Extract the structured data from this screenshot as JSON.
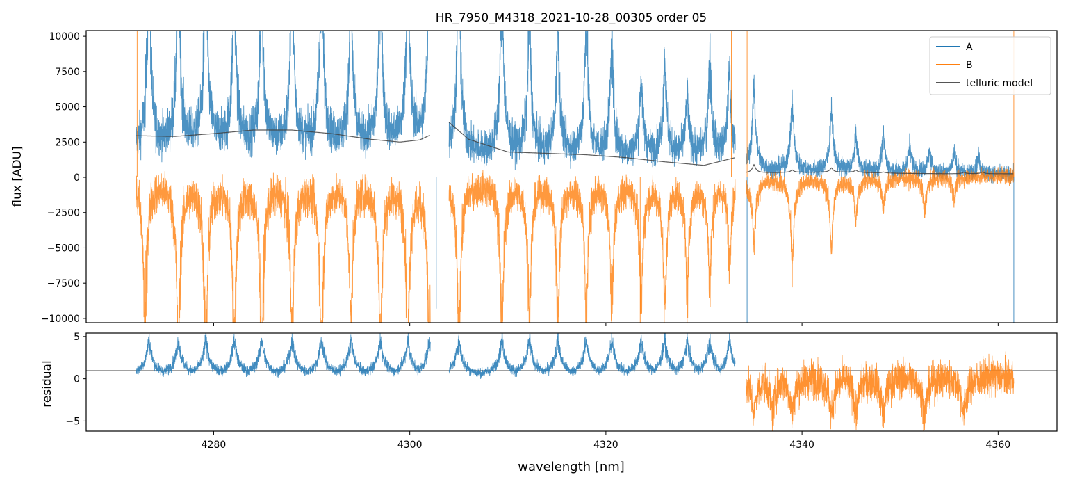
{
  "chart_data": [
    {
      "panel": "top",
      "type": "line",
      "title": "HR_7950_M4318_2021-10-28_00305  order 05",
      "xlabel": "",
      "ylabel": "flux [ADU]",
      "xlim": [
        4267,
        4366
      ],
      "ylim": [
        -10300,
        10400
      ],
      "x_ticks": [
        4280,
        4300,
        4320,
        4340,
        4360
      ],
      "y_ticks": [
        -10000,
        -7500,
        -5000,
        -2500,
        0,
        2500,
        5000,
        7500,
        10000
      ],
      "y_tick_labels": [
        "−10000",
        "−7500",
        "−5000",
        "−2500",
        "0",
        "2500",
        "5000",
        "7500",
        "10000"
      ],
      "legend_position": "top-right",
      "series": [
        {
          "name": "A",
          "color": "#1f77b4",
          "segments": [
            [
              4272.1,
              4302.1
            ],
            [
              4304.0,
              4333.2
            ],
            [
              4334.3,
              4361.6
            ]
          ],
          "baseline": [
            [
              4272.1,
              1700
            ],
            [
              4302.1,
              1800
            ],
            [
              4304.0,
              1200
            ],
            [
              4333.2,
              1100
            ],
            [
              4334.3,
              200
            ],
            [
              4361.6,
              150
            ]
          ],
          "noise": [
            [
              4272.1,
              900
            ],
            [
              4333.2,
              700
            ],
            [
              4334.3,
              450
            ],
            [
              4361.6,
              400
            ]
          ],
          "peaks": [
            {
              "x": 4273.4,
              "h": 14000
            },
            {
              "x": 4276.4,
              "h": 14000
            },
            {
              "x": 4279.2,
              "h": 14000
            },
            {
              "x": 4282.1,
              "h": 12500
            },
            {
              "x": 4284.9,
              "h": 12000
            },
            {
              "x": 4288.0,
              "h": 12500
            },
            {
              "x": 4291.0,
              "h": 13500
            },
            {
              "x": 4294.0,
              "h": 11000
            },
            {
              "x": 4297.0,
              "h": 12500
            },
            {
              "x": 4299.8,
              "h": 13000
            },
            {
              "x": 4302.0,
              "h": 14000
            },
            {
              "x": 4305.0,
              "h": 13500
            },
            {
              "x": 4309.4,
              "h": 12500
            },
            {
              "x": 4312.2,
              "h": 10000
            },
            {
              "x": 4315.1,
              "h": 9000
            },
            {
              "x": 4318.0,
              "h": 10000
            },
            {
              "x": 4320.6,
              "h": 8000
            },
            {
              "x": 4323.6,
              "h": 5500
            },
            {
              "x": 4326.0,
              "h": 7000
            },
            {
              "x": 4328.3,
              "h": 4000
            },
            {
              "x": 4330.6,
              "h": 7000
            },
            {
              "x": 4332.6,
              "h": 6000
            },
            {
              "x": 4335.1,
              "h": 6000
            },
            {
              "x": 4339.0,
              "h": 5000
            },
            {
              "x": 4343.0,
              "h": 4500
            },
            {
              "x": 4345.5,
              "h": 2500
            },
            {
              "x": 4348.3,
              "h": 2500
            },
            {
              "x": 4351.0,
              "h": 2000
            },
            {
              "x": 4353.0,
              "h": 1500
            },
            {
              "x": 4355.5,
              "h": 1500
            },
            {
              "x": 4358.0,
              "h": 1200
            }
          ],
          "spikes": [
            {
              "x": 4302.7,
              "y": -9300
            },
            {
              "x": 4334.4,
              "y": -10300
            },
            {
              "x": 4361.6,
              "y": -10300
            }
          ]
        },
        {
          "name": "B",
          "color": "#ff7f0e",
          "segments": [
            [
              4272.1,
              4302.1
            ],
            [
              4304.0,
              4333.2
            ],
            [
              4334.3,
              4361.6
            ]
          ],
          "baseline": [
            [
              4272.1,
              0
            ],
            [
              4302.1,
              0
            ],
            [
              4304.0,
              0
            ],
            [
              4333.2,
              0
            ],
            [
              4334.3,
              100
            ],
            [
              4361.6,
              150
            ]
          ],
          "noise": [
            [
              4272.1,
              850
            ],
            [
              4333.2,
              650
            ],
            [
              4334.3,
              450
            ],
            [
              4361.6,
              400
            ]
          ],
          "peaks": [
            {
              "x": 4273.0,
              "h": -11000
            },
            {
              "x": 4276.4,
              "h": -13000
            },
            {
              "x": 4279.2,
              "h": -13000
            },
            {
              "x": 4282.1,
              "h": -12000
            },
            {
              "x": 4284.9,
              "h": -13000
            },
            {
              "x": 4288.0,
              "h": -12000
            },
            {
              "x": 4291.0,
              "h": -12500
            },
            {
              "x": 4294.0,
              "h": -10000
            },
            {
              "x": 4297.0,
              "h": -12000
            },
            {
              "x": 4299.8,
              "h": -12000
            },
            {
              "x": 4302.0,
              "h": -13000
            },
            {
              "x": 4305.0,
              "h": -12000
            },
            {
              "x": 4309.4,
              "h": -11000
            },
            {
              "x": 4312.2,
              "h": -10000
            },
            {
              "x": 4315.1,
              "h": -10000
            },
            {
              "x": 4318.0,
              "h": -9500
            },
            {
              "x": 4320.6,
              "h": -9000
            },
            {
              "x": 4323.6,
              "h": -9000
            },
            {
              "x": 4326.0,
              "h": -9000
            },
            {
              "x": 4328.3,
              "h": -8000
            },
            {
              "x": 4330.6,
              "h": -7500
            },
            {
              "x": 4332.6,
              "h": -5500
            },
            {
              "x": 4335.1,
              "h": -4500
            },
            {
              "x": 4339.0,
              "h": -6000
            },
            {
              "x": 4343.0,
              "h": -5000
            },
            {
              "x": 4345.5,
              "h": -3000
            },
            {
              "x": 4348.3,
              "h": -2000
            },
            {
              "x": 4352.5,
              "h": -2500
            },
            {
              "x": 4355.5,
              "h": -1500
            }
          ],
          "spikes": [
            {
              "x": 4272.2,
              "y": 10400
            },
            {
              "x": 4323.5,
              "y": -10300
            },
            {
              "x": 4332.8,
              "y": 10400
            },
            {
              "x": 4334.4,
              "y": 10400
            },
            {
              "x": 4361.6,
              "y": 10400
            }
          ]
        },
        {
          "name": "telluric model",
          "color": "#404040",
          "segments": [
            [
              4272.1,
              4302.1
            ],
            [
              4304.0,
              4333.2
            ],
            [
              4334.3,
              4361.6
            ]
          ],
          "points": [
            [
              4272.1,
              2950
            ],
            [
              4276,
              2900
            ],
            [
              4280,
              3100
            ],
            [
              4284,
              3350
            ],
            [
              4288,
              3350
            ],
            [
              4292,
              3100
            ],
            [
              4296,
              2700
            ],
            [
              4299,
              2500
            ],
            [
              4301,
              2650
            ],
            [
              4302.1,
              3000
            ],
            [
              4304.0,
              3900
            ],
            [
              4306,
              2700
            ],
            [
              4310,
              1800
            ],
            [
              4314,
              1700
            ],
            [
              4318,
              1600
            ],
            [
              4322,
              1400
            ],
            [
              4326,
              1100
            ],
            [
              4330,
              850
            ],
            [
              4333.2,
              1400
            ],
            [
              4334.3,
              300
            ],
            [
              4340,
              350
            ],
            [
              4345,
              350
            ],
            [
              4350,
              280
            ],
            [
              4355,
              250
            ],
            [
              4361.6,
              250
            ]
          ],
          "peaks": [
            {
              "x": 4335.1,
              "h": 1700
            },
            {
              "x": 4339.0,
              "h": 500
            },
            {
              "x": 4343.0,
              "h": 900
            },
            {
              "x": 4345.5,
              "h": 450
            },
            {
              "x": 4348.3,
              "h": 200
            },
            {
              "x": 4356.5,
              "h": 300
            },
            {
              "x": 4358.4,
              "h": 350
            }
          ]
        }
      ]
    },
    {
      "panel": "bottom",
      "type": "line",
      "xlabel": "wavelength [nm]",
      "ylabel": "residual",
      "xlim": [
        4267,
        4366
      ],
      "ylim": [
        -6.2,
        5.4
      ],
      "x_ticks": [
        4280,
        4300,
        4320,
        4340,
        4360
      ],
      "y_ticks": [
        -5,
        0,
        5
      ],
      "y_tick_labels": [
        "−5",
        "0",
        "5"
      ],
      "reference_line": 1,
      "series": [
        {
          "name": "A",
          "color": "#1f77b4",
          "segments": [
            [
              4272.1,
              4302.1
            ],
            [
              4304.0,
              4333.2
            ]
          ],
          "baseline": 0.3,
          "noise": 0.35,
          "peaks_h": 4.3
        },
        {
          "name": "B",
          "color": "#ff7f0e",
          "segments": [
            [
              4334.3,
              4361.6
            ]
          ],
          "baseline": 0.3,
          "noise": 1.6,
          "dips": [
            4335.1,
            4337.0,
            4339.0,
            4343.0,
            4345.5,
            4348.3,
            4352.5,
            4356.5
          ]
        }
      ]
    }
  ]
}
